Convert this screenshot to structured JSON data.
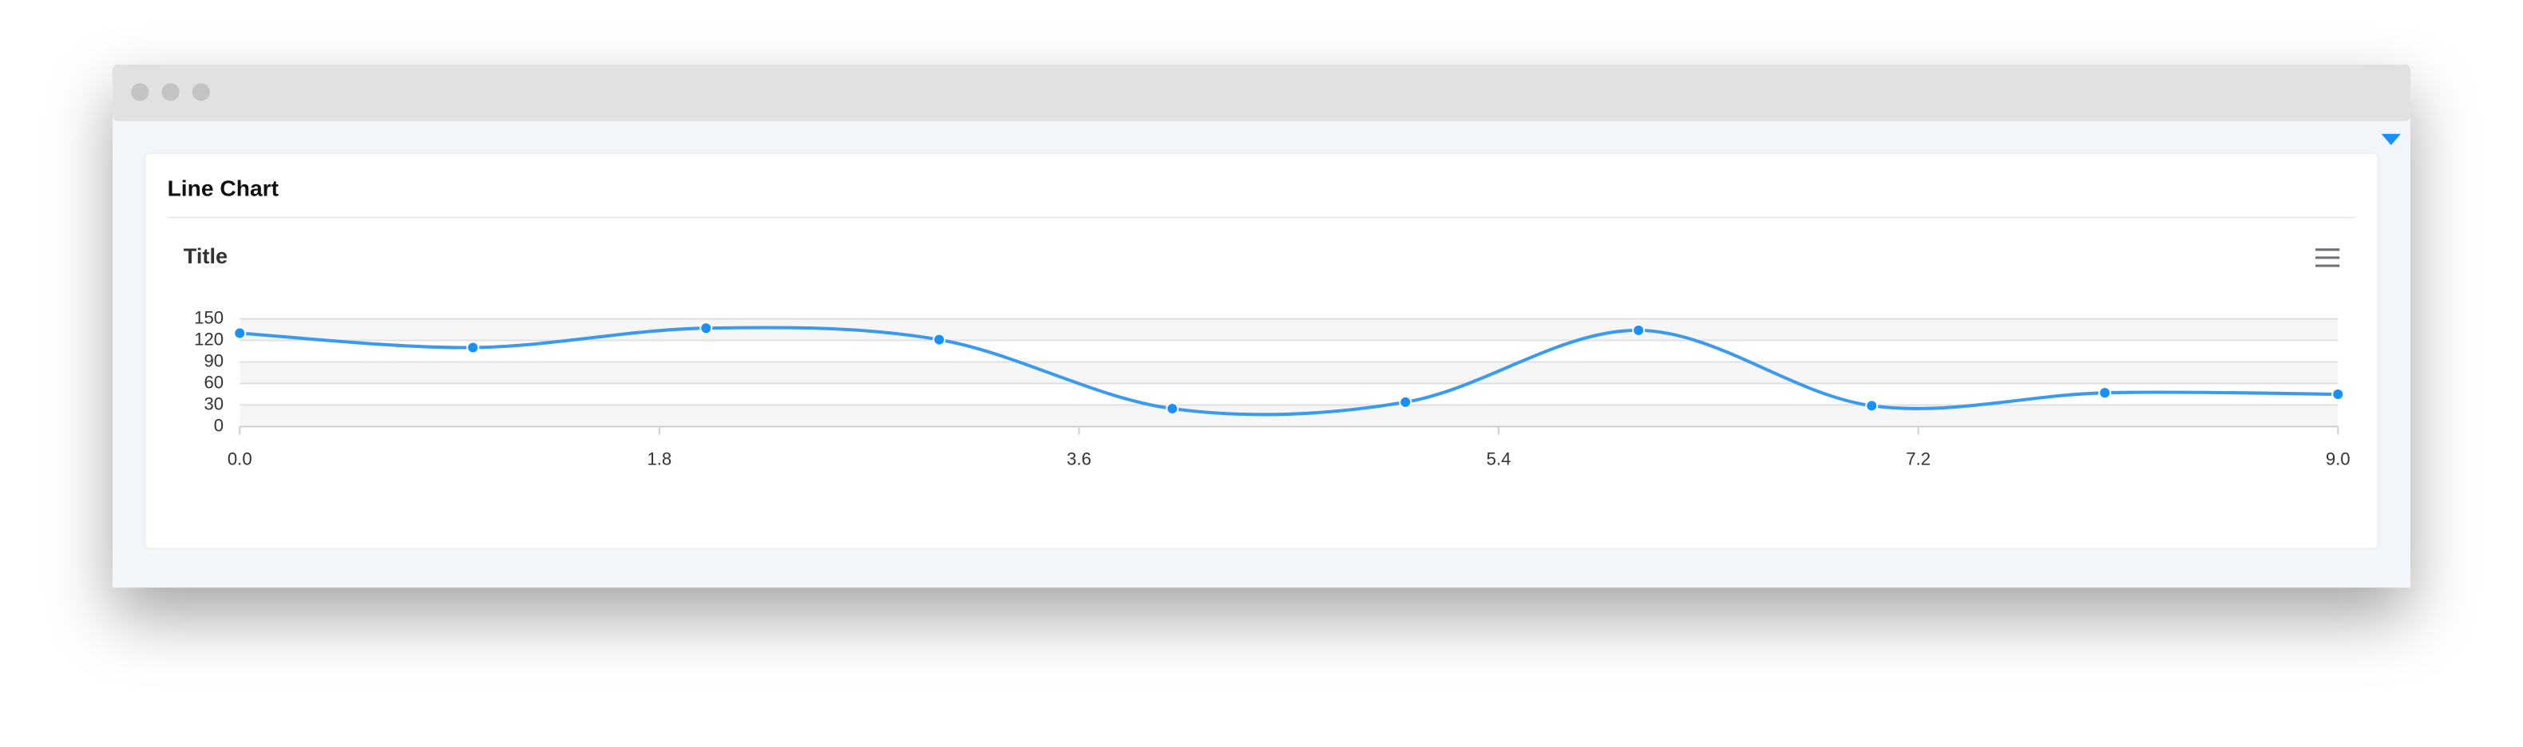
{
  "panel": {
    "title": "Line Chart"
  },
  "chart_data": {
    "type": "line",
    "title": "Title",
    "x": [
      0,
      1,
      2,
      3,
      4,
      5,
      6,
      7,
      8,
      9
    ],
    "series": [
      {
        "color": "#3a9bee",
        "values": [
          130,
          110,
          137,
          121,
          25,
          34,
          134,
          29,
          47,
          45
        ]
      }
    ],
    "xlim": [
      0,
      9
    ],
    "xticks": [
      {
        "value": 0,
        "label": "0.0"
      },
      1.8,
      3.6,
      5.4,
      7.2,
      {
        "value": 9,
        "label": "9.0"
      }
    ],
    "ylim": [
      0,
      150
    ],
    "yticks": [
      0,
      30,
      60,
      90,
      120,
      150
    ],
    "grid": true,
    "smooth": true
  }
}
